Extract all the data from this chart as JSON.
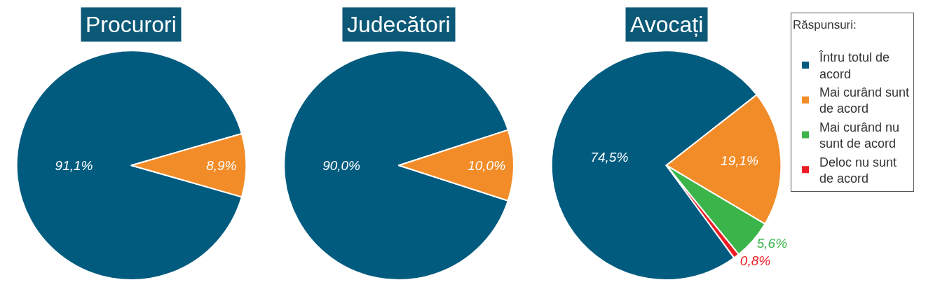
{
  "chart_data": [
    {
      "type": "pie",
      "title": "Procurori",
      "categories": [
        null,
        null
      ],
      "values": [
        91.1,
        8.9
      ],
      "colors": [
        "#005b7f",
        "#f28c28"
      ],
      "value_labels": [
        "91,1%",
        "8,9%"
      ]
    },
    {
      "type": "pie",
      "title": "Judecători",
      "categories": [
        null,
        null
      ],
      "values": [
        90.0,
        10.0
      ],
      "colors": [
        "#005b7f",
        "#f28c28"
      ],
      "value_labels": [
        "90,0%",
        "10,0%"
      ]
    },
    {
      "type": "pie",
      "title": "Avocați",
      "categories": [
        "Întru totul de acord",
        "Mai curând sunt de acord",
        "Mai curând nu sunt de acord",
        "Deloc nu sunt de acord"
      ],
      "values": [
        74.5,
        19.1,
        5.6,
        0.8
      ],
      "colors": [
        "#005b7f",
        "#f28c28",
        "#3bb54a",
        "#ed1c24"
      ],
      "value_labels": [
        "74,5%",
        "19,1%",
        "5,6%",
        "0,8%"
      ],
      "legend": "right",
      "legend_title": "Răspunsuri:"
    }
  ]
}
